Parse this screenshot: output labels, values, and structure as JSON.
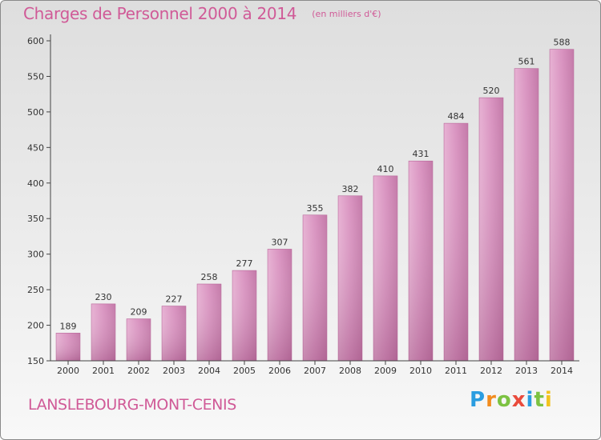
{
  "chart_data": {
    "type": "bar",
    "title": "Charges de Personnel 2000 à 2014",
    "subtitle": "(en milliers d'€)",
    "categories": [
      "2000",
      "2001",
      "2002",
      "2003",
      "2004",
      "2005",
      "2006",
      "2007",
      "2008",
      "2009",
      "2010",
      "2011",
      "2012",
      "2013",
      "2014"
    ],
    "values": [
      189,
      230,
      209,
      227,
      258,
      277,
      307,
      355,
      382,
      410,
      431,
      484,
      520,
      561,
      588
    ],
    "ylim": [
      150,
      600
    ],
    "yticks": [
      150,
      200,
      250,
      300,
      350,
      400,
      450,
      500,
      550,
      600
    ],
    "grid": false,
    "bar_color": "#d98fbd"
  },
  "footer": {
    "commune": "LANSLEBOURG-MONT-CENIS",
    "brand_letters": [
      "P",
      "r",
      "o",
      "x",
      "i",
      "t",
      "i"
    ]
  }
}
